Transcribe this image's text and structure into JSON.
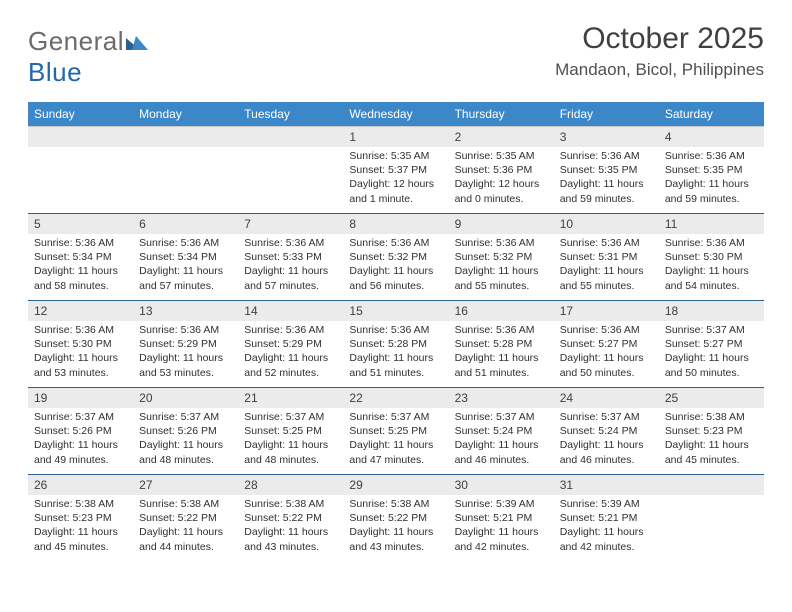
{
  "brand": {
    "part1": "General",
    "part2": "Blue"
  },
  "title": "October 2025",
  "location": "Mandaon, Bicol, Philippines",
  "colors": {
    "header_bg": "#3b87c8",
    "header_text": "#ffffff",
    "daynum_bg": "#ebebeb",
    "week_border": "#2d5f91",
    "body_text": "#303030",
    "title_text": "#404040",
    "logo_gray": "#6b6b6b",
    "logo_blue": "#2268a8"
  },
  "day_names": [
    "Sunday",
    "Monday",
    "Tuesday",
    "Wednesday",
    "Thursday",
    "Friday",
    "Saturday"
  ],
  "weeks": [
    [
      {
        "n": "",
        "sr": "",
        "ss": "",
        "dl": ""
      },
      {
        "n": "",
        "sr": "",
        "ss": "",
        "dl": ""
      },
      {
        "n": "",
        "sr": "",
        "ss": "",
        "dl": ""
      },
      {
        "n": "1",
        "sr": "Sunrise: 5:35 AM",
        "ss": "Sunset: 5:37 PM",
        "dl": "Daylight: 12 hours and 1 minute."
      },
      {
        "n": "2",
        "sr": "Sunrise: 5:35 AM",
        "ss": "Sunset: 5:36 PM",
        "dl": "Daylight: 12 hours and 0 minutes."
      },
      {
        "n": "3",
        "sr": "Sunrise: 5:36 AM",
        "ss": "Sunset: 5:35 PM",
        "dl": "Daylight: 11 hours and 59 minutes."
      },
      {
        "n": "4",
        "sr": "Sunrise: 5:36 AM",
        "ss": "Sunset: 5:35 PM",
        "dl": "Daylight: 11 hours and 59 minutes."
      }
    ],
    [
      {
        "n": "5",
        "sr": "Sunrise: 5:36 AM",
        "ss": "Sunset: 5:34 PM",
        "dl": "Daylight: 11 hours and 58 minutes."
      },
      {
        "n": "6",
        "sr": "Sunrise: 5:36 AM",
        "ss": "Sunset: 5:34 PM",
        "dl": "Daylight: 11 hours and 57 minutes."
      },
      {
        "n": "7",
        "sr": "Sunrise: 5:36 AM",
        "ss": "Sunset: 5:33 PM",
        "dl": "Daylight: 11 hours and 57 minutes."
      },
      {
        "n": "8",
        "sr": "Sunrise: 5:36 AM",
        "ss": "Sunset: 5:32 PM",
        "dl": "Daylight: 11 hours and 56 minutes."
      },
      {
        "n": "9",
        "sr": "Sunrise: 5:36 AM",
        "ss": "Sunset: 5:32 PM",
        "dl": "Daylight: 11 hours and 55 minutes."
      },
      {
        "n": "10",
        "sr": "Sunrise: 5:36 AM",
        "ss": "Sunset: 5:31 PM",
        "dl": "Daylight: 11 hours and 55 minutes."
      },
      {
        "n": "11",
        "sr": "Sunrise: 5:36 AM",
        "ss": "Sunset: 5:30 PM",
        "dl": "Daylight: 11 hours and 54 minutes."
      }
    ],
    [
      {
        "n": "12",
        "sr": "Sunrise: 5:36 AM",
        "ss": "Sunset: 5:30 PM",
        "dl": "Daylight: 11 hours and 53 minutes."
      },
      {
        "n": "13",
        "sr": "Sunrise: 5:36 AM",
        "ss": "Sunset: 5:29 PM",
        "dl": "Daylight: 11 hours and 53 minutes."
      },
      {
        "n": "14",
        "sr": "Sunrise: 5:36 AM",
        "ss": "Sunset: 5:29 PM",
        "dl": "Daylight: 11 hours and 52 minutes."
      },
      {
        "n": "15",
        "sr": "Sunrise: 5:36 AM",
        "ss": "Sunset: 5:28 PM",
        "dl": "Daylight: 11 hours and 51 minutes."
      },
      {
        "n": "16",
        "sr": "Sunrise: 5:36 AM",
        "ss": "Sunset: 5:28 PM",
        "dl": "Daylight: 11 hours and 51 minutes."
      },
      {
        "n": "17",
        "sr": "Sunrise: 5:36 AM",
        "ss": "Sunset: 5:27 PM",
        "dl": "Daylight: 11 hours and 50 minutes."
      },
      {
        "n": "18",
        "sr": "Sunrise: 5:37 AM",
        "ss": "Sunset: 5:27 PM",
        "dl": "Daylight: 11 hours and 50 minutes."
      }
    ],
    [
      {
        "n": "19",
        "sr": "Sunrise: 5:37 AM",
        "ss": "Sunset: 5:26 PM",
        "dl": "Daylight: 11 hours and 49 minutes."
      },
      {
        "n": "20",
        "sr": "Sunrise: 5:37 AM",
        "ss": "Sunset: 5:26 PM",
        "dl": "Daylight: 11 hours and 48 minutes."
      },
      {
        "n": "21",
        "sr": "Sunrise: 5:37 AM",
        "ss": "Sunset: 5:25 PM",
        "dl": "Daylight: 11 hours and 48 minutes."
      },
      {
        "n": "22",
        "sr": "Sunrise: 5:37 AM",
        "ss": "Sunset: 5:25 PM",
        "dl": "Daylight: 11 hours and 47 minutes."
      },
      {
        "n": "23",
        "sr": "Sunrise: 5:37 AM",
        "ss": "Sunset: 5:24 PM",
        "dl": "Daylight: 11 hours and 46 minutes."
      },
      {
        "n": "24",
        "sr": "Sunrise: 5:37 AM",
        "ss": "Sunset: 5:24 PM",
        "dl": "Daylight: 11 hours and 46 minutes."
      },
      {
        "n": "25",
        "sr": "Sunrise: 5:38 AM",
        "ss": "Sunset: 5:23 PM",
        "dl": "Daylight: 11 hours and 45 minutes."
      }
    ],
    [
      {
        "n": "26",
        "sr": "Sunrise: 5:38 AM",
        "ss": "Sunset: 5:23 PM",
        "dl": "Daylight: 11 hours and 45 minutes."
      },
      {
        "n": "27",
        "sr": "Sunrise: 5:38 AM",
        "ss": "Sunset: 5:22 PM",
        "dl": "Daylight: 11 hours and 44 minutes."
      },
      {
        "n": "28",
        "sr": "Sunrise: 5:38 AM",
        "ss": "Sunset: 5:22 PM",
        "dl": "Daylight: 11 hours and 43 minutes."
      },
      {
        "n": "29",
        "sr": "Sunrise: 5:38 AM",
        "ss": "Sunset: 5:22 PM",
        "dl": "Daylight: 11 hours and 43 minutes."
      },
      {
        "n": "30",
        "sr": "Sunrise: 5:39 AM",
        "ss": "Sunset: 5:21 PM",
        "dl": "Daylight: 11 hours and 42 minutes."
      },
      {
        "n": "31",
        "sr": "Sunrise: 5:39 AM",
        "ss": "Sunset: 5:21 PM",
        "dl": "Daylight: 11 hours and 42 minutes."
      },
      {
        "n": "",
        "sr": "",
        "ss": "",
        "dl": ""
      }
    ]
  ]
}
